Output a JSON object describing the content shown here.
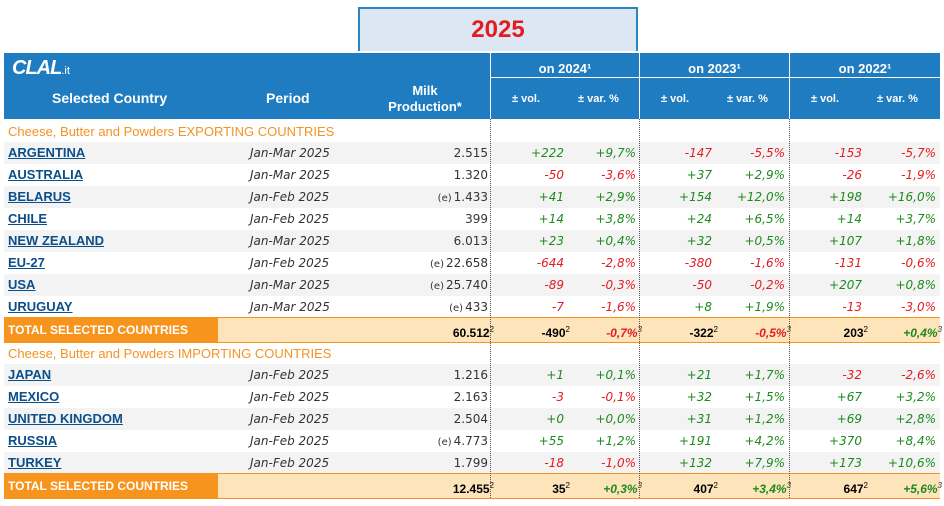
{
  "year": "2025",
  "logo": {
    "main": "CLAL",
    "suffix": ".it"
  },
  "header": {
    "country": "Selected Country",
    "period": "Period",
    "milk_line1": "Milk",
    "milk_line2": "Production*",
    "groups": [
      "on 2024¹",
      "on 2023¹",
      "on 2022¹"
    ],
    "vol": "± vol.",
    "var": "± var. %"
  },
  "exporting": {
    "title": "Cheese, Butter and Powders EXPORTING COUNTRIES",
    "rows": [
      {
        "country": "ARGENTINA",
        "period": "Jan-Mar 2025",
        "e": "",
        "milk": "2.515",
        "v": [
          [
            "+222",
            "+9,7%"
          ],
          [
            "-147",
            "-5,5%"
          ],
          [
            "-153",
            "-5,7%"
          ]
        ]
      },
      {
        "country": "AUSTRALIA",
        "period": "Jan-Mar 2025",
        "e": "",
        "milk": "1.320",
        "v": [
          [
            "-50",
            "-3,6%"
          ],
          [
            "+37",
            "+2,9%"
          ],
          [
            "-26",
            "-1,9%"
          ]
        ]
      },
      {
        "country": "BELARUS",
        "period": "Jan-Feb 2025",
        "e": "(e)",
        "milk": "1.433",
        "v": [
          [
            "+41",
            "+2,9%"
          ],
          [
            "+154",
            "+12,0%"
          ],
          [
            "+198",
            "+16,0%"
          ]
        ]
      },
      {
        "country": "CHILE",
        "period": "Jan-Feb 2025",
        "e": "",
        "milk": "399",
        "v": [
          [
            "+14",
            "+3,8%"
          ],
          [
            "+24",
            "+6,5%"
          ],
          [
            "+14",
            "+3,7%"
          ]
        ]
      },
      {
        "country": "NEW ZEALAND",
        "period": "Jan-Mar 2025",
        "e": "",
        "milk": "6.013",
        "v": [
          [
            "+23",
            "+0,4%"
          ],
          [
            "+32",
            "+0,5%"
          ],
          [
            "+107",
            "+1,8%"
          ]
        ]
      },
      {
        "country": "EU-27",
        "period": "Jan-Feb 2025",
        "e": "(e)",
        "milk": "22.658",
        "v": [
          [
            "-644",
            "-2,8%"
          ],
          [
            "-380",
            "-1,6%"
          ],
          [
            "-131",
            "-0,6%"
          ]
        ]
      },
      {
        "country": "USA",
        "period": "Jan-Mar 2025",
        "e": "(e)",
        "milk": "25.740",
        "v": [
          [
            "-89",
            "-0,3%"
          ],
          [
            "-50",
            "-0,2%"
          ],
          [
            "+207",
            "+0,8%"
          ]
        ]
      },
      {
        "country": "URUGUAY",
        "period": "Jan-Mar 2025",
        "e": "(e)",
        "milk": "433",
        "v": [
          [
            "-7",
            "-1,6%"
          ],
          [
            "+8",
            "+1,9%"
          ],
          [
            "-13",
            "-3,0%"
          ]
        ]
      }
    ],
    "total": {
      "label": "TOTAL SELECTED COUNTRIES",
      "milk": "60.512",
      "v": [
        [
          "-490",
          "-0,7%"
        ],
        [
          "-322",
          "-0,5%"
        ],
        [
          "203",
          "+0,4%"
        ]
      ]
    }
  },
  "importing": {
    "title": "Cheese, Butter and Powders IMPORTING COUNTRIES",
    "rows": [
      {
        "country": "JAPAN",
        "period": "Jan-Feb 2025",
        "e": "",
        "milk": "1.216",
        "v": [
          [
            "+1",
            "+0,1%"
          ],
          [
            "+21",
            "+1,7%"
          ],
          [
            "-32",
            "-2,6%"
          ]
        ]
      },
      {
        "country": "MEXICO",
        "period": "Jan-Feb 2025",
        "e": "",
        "milk": "2.163",
        "v": [
          [
            "-3",
            "-0,1%"
          ],
          [
            "+32",
            "+1,5%"
          ],
          [
            "+67",
            "+3,2%"
          ]
        ]
      },
      {
        "country": "UNITED KINGDOM",
        "period": "Jan-Feb 2025",
        "e": "",
        "milk": "2.504",
        "v": [
          [
            "+0",
            "+0,0%"
          ],
          [
            "+31",
            "+1,2%"
          ],
          [
            "+69",
            "+2,8%"
          ]
        ]
      },
      {
        "country": "RUSSIA",
        "period": "Jan-Feb 2025",
        "e": "(e)",
        "milk": "4.773",
        "v": [
          [
            "+55",
            "+1,2%"
          ],
          [
            "+191",
            "+4,2%"
          ],
          [
            "+370",
            "+8,4%"
          ]
        ]
      },
      {
        "country": "TURKEY",
        "period": "Jan-Feb 2025",
        "e": "",
        "milk": "1.799",
        "v": [
          [
            "-18",
            "-1,0%"
          ],
          [
            "+132",
            "+7,9%"
          ],
          [
            "+173",
            "+10,6%"
          ]
        ]
      }
    ],
    "total": {
      "label": "TOTAL SELECTED COUNTRIES",
      "milk": "12.455",
      "v": [
        [
          "35",
          "+0,3%"
        ],
        [
          "407",
          "+3,4%"
        ],
        [
          "647",
          "+5,6%"
        ]
      ]
    }
  },
  "sup_total": "2",
  "sup_pct": "3",
  "colors": {
    "header": "#1f7cc1",
    "year": "#e31b23",
    "positive": "#1e8a1e",
    "negative": "#e31b23",
    "total_label": "#f7941d",
    "total_row": "#fde4bb",
    "section_title": "#f39323"
  }
}
